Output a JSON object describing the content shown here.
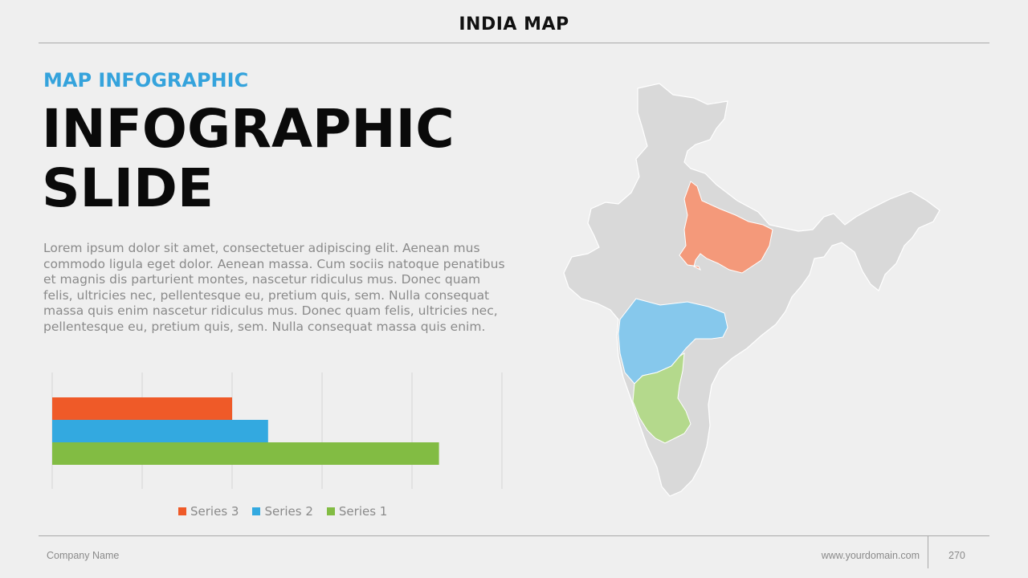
{
  "header": {
    "title": "INDIA MAP"
  },
  "content": {
    "subtitle": "MAP INFOGRAPHIC",
    "headline_line1": "INFOGRAPHIC",
    "headline_line2": "SLIDE",
    "body": "Lorem ipsum dolor sit amet, consectetuer adipiscing elit. Aenean mus commodo ligula eget dolor. Aenean massa. Cum sociis natoque penatibus et magnis dis parturient montes, nascetur ridiculus mus. Donec quam felis, ultricies nec, pellentesque eu, pretium quis, sem. Nulla consequat massa quis enim nascetur ridiculus mus. Donec quam felis, ultricies nec, pellentesque eu, pretium quis, sem. Nulla consequat massa quis enim."
  },
  "chart_data": {
    "type": "bar",
    "orientation": "horizontal",
    "categories": [
      ""
    ],
    "series": [
      {
        "name": "Series 3",
        "values": [
          2.0
        ],
        "color": "#ef5a28"
      },
      {
        "name": "Series 2",
        "values": [
          2.4
        ],
        "color": "#33a9e0"
      },
      {
        "name": "Series 1",
        "values": [
          4.3
        ],
        "color": "#82bc43"
      }
    ],
    "xlim": [
      0,
      5
    ],
    "grid": true,
    "legend": "bottom",
    "legend_order": [
      "Series 3",
      "Series 2",
      "Series 1"
    ]
  },
  "map": {
    "highlighted_states": [
      {
        "name": "Uttar Pradesh",
        "color": "#f4997a"
      },
      {
        "name": "Maharashtra",
        "color": "#86c8ec"
      },
      {
        "name": "Karnataka",
        "color": "#b4d98c"
      }
    ],
    "base_color": "#d9d9d9"
  },
  "footer": {
    "company": "Company Name",
    "website": "www.yourdomain.com",
    "page_number": "270"
  }
}
